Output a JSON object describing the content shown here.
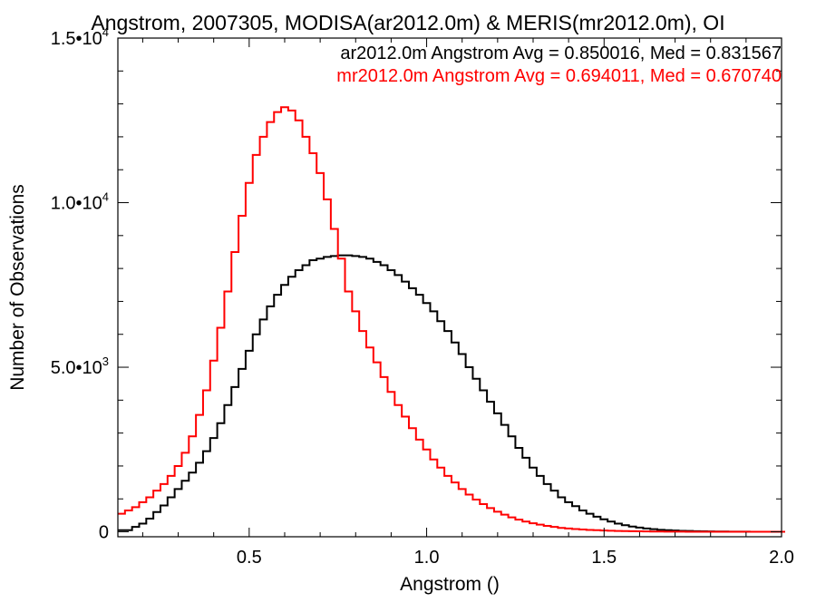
{
  "chart_data": {
    "type": "line",
    "title": "Angstrom, 2007305, MODISA(ar2012.0m) & MERIS(mr2012.0m), OI",
    "xlabel": "Angstrom ()",
    "ylabel": "Number of Observations",
    "xlim": [
      0.13,
      2.0
    ],
    "ylim": [
      -150,
      15000
    ],
    "xticks": [
      {
        "value": 0.5,
        "label": "0.5"
      },
      {
        "value": 1.0,
        "label": "1.0"
      },
      {
        "value": 1.5,
        "label": "1.5"
      },
      {
        "value": 2.0,
        "label": "2.0"
      }
    ],
    "yticks": [
      {
        "value": 0,
        "mant": "0",
        "exp": ""
      },
      {
        "value": 5000,
        "mant": "5.0•10",
        "exp": "3"
      },
      {
        "value": 10000,
        "mant": "1.0•10",
        "exp": "4"
      },
      {
        "value": 15000,
        "mant": "1.5•10",
        "exp": "4"
      }
    ],
    "grid": false,
    "legend_position": "top-right",
    "series": [
      {
        "name": "ar2012.0m",
        "legend": "ar2012.0m Angstrom Avg = 0.850016, Med = 0.831567",
        "color": "#000000",
        "x": [
          0.13,
          0.15,
          0.17,
          0.19,
          0.21,
          0.23,
          0.25,
          0.27,
          0.29,
          0.31,
          0.33,
          0.35,
          0.37,
          0.39,
          0.41,
          0.43,
          0.45,
          0.47,
          0.49,
          0.51,
          0.53,
          0.55,
          0.57,
          0.59,
          0.61,
          0.63,
          0.65,
          0.67,
          0.69,
          0.71,
          0.73,
          0.75,
          0.77,
          0.79,
          0.81,
          0.83,
          0.85,
          0.87,
          0.89,
          0.91,
          0.93,
          0.95,
          0.97,
          0.99,
          1.01,
          1.03,
          1.05,
          1.07,
          1.09,
          1.11,
          1.13,
          1.15,
          1.17,
          1.19,
          1.21,
          1.23,
          1.25,
          1.27,
          1.29,
          1.31,
          1.33,
          1.35,
          1.37,
          1.39,
          1.41,
          1.43,
          1.45,
          1.47,
          1.49,
          1.51,
          1.53,
          1.55,
          1.57,
          1.59,
          1.61,
          1.63,
          1.65,
          1.67,
          1.69,
          1.71,
          1.73,
          1.75,
          1.77,
          1.79,
          1.81,
          1.83,
          1.85,
          1.87,
          1.89,
          1.91,
          1.93,
          1.95,
          1.97,
          1.99
        ],
        "y": [
          50,
          50,
          150,
          250,
          400,
          600,
          800,
          1050,
          1300,
          1550,
          1800,
          2100,
          2450,
          2850,
          3300,
          3850,
          4400,
          4950,
          5500,
          6000,
          6450,
          6850,
          7200,
          7500,
          7750,
          7950,
          8100,
          8250,
          8300,
          8350,
          8380,
          8400,
          8400,
          8380,
          8350,
          8300,
          8200,
          8100,
          7950,
          7800,
          7600,
          7400,
          7200,
          6950,
          6700,
          6400,
          6100,
          5750,
          5400,
          5000,
          4650,
          4300,
          3950,
          3600,
          3250,
          2900,
          2550,
          2250,
          1950,
          1700,
          1450,
          1250,
          1050,
          900,
          780,
          650,
          550,
          460,
          380,
          310,
          250,
          200,
          160,
          130,
          100,
          80,
          60,
          50,
          40,
          30,
          25,
          20,
          15,
          12,
          10,
          8,
          6,
          5,
          4,
          3,
          2,
          2,
          1,
          1
        ]
      },
      {
        "name": "mr2012.0m",
        "legend": "mr2012.0m Angstrom Avg = 0.694011, Med = 0.670740",
        "color": "#ff0000",
        "x": [
          0.13,
          0.15,
          0.17,
          0.19,
          0.21,
          0.23,
          0.25,
          0.27,
          0.29,
          0.31,
          0.33,
          0.35,
          0.37,
          0.39,
          0.41,
          0.43,
          0.45,
          0.47,
          0.49,
          0.51,
          0.53,
          0.55,
          0.57,
          0.59,
          0.61,
          0.63,
          0.65,
          0.67,
          0.69,
          0.71,
          0.73,
          0.75,
          0.77,
          0.79,
          0.81,
          0.83,
          0.85,
          0.87,
          0.89,
          0.91,
          0.93,
          0.95,
          0.97,
          0.99,
          1.01,
          1.03,
          1.05,
          1.07,
          1.09,
          1.11,
          1.13,
          1.15,
          1.17,
          1.19,
          1.21,
          1.23,
          1.25,
          1.27,
          1.29,
          1.31,
          1.33,
          1.35,
          1.37,
          1.39,
          1.41,
          1.43,
          1.45,
          1.47,
          1.49,
          1.51,
          1.53,
          1.55,
          1.57,
          1.59,
          1.61,
          1.63,
          1.65,
          1.67,
          1.69,
          1.71,
          1.73,
          1.75,
          1.77,
          1.79,
          1.81,
          1.83,
          1.85,
          1.87,
          1.89,
          1.91,
          1.93,
          1.95,
          1.97,
          1.99
        ],
        "y": [
          550,
          650,
          750,
          900,
          1050,
          1250,
          1450,
          1700,
          2000,
          2400,
          2900,
          3550,
          4300,
          5200,
          6200,
          7300,
          8500,
          9600,
          10600,
          11450,
          12000,
          12450,
          12750,
          12900,
          12800,
          12500,
          12000,
          11500,
          10900,
          10100,
          9200,
          8300,
          7300,
          6700,
          6100,
          5600,
          5150,
          4700,
          4250,
          3850,
          3500,
          3150,
          2800,
          2500,
          2200,
          1950,
          1700,
          1500,
          1300,
          1130,
          980,
          840,
          720,
          610,
          520,
          440,
          370,
          310,
          260,
          220,
          180,
          150,
          120,
          100,
          85,
          70,
          58,
          48,
          40,
          33,
          27,
          22,
          18,
          14,
          11,
          9,
          7,
          6,
          5,
          4,
          3,
          3,
          2,
          2,
          1,
          1,
          1,
          1,
          1,
          0,
          0,
          0,
          0,
          0
        ]
      }
    ]
  }
}
